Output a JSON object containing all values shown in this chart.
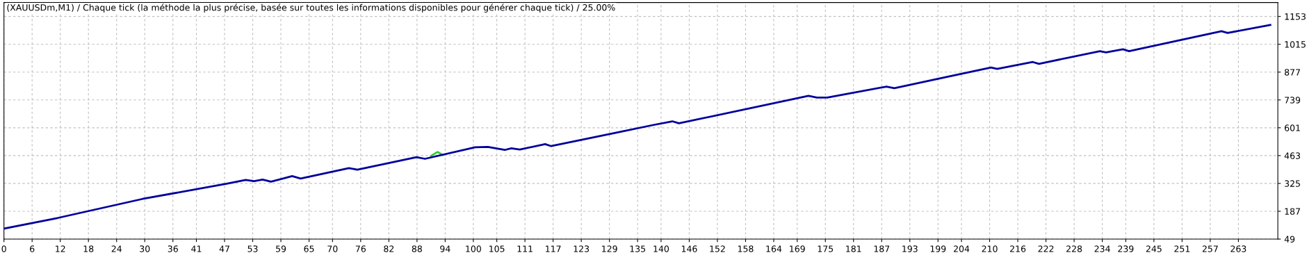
{
  "chart_data": {
    "type": "line",
    "title": "(XAUUSDm,M1) / Chaque tick (la méthode la plus précise, basée sur toutes les informations disponibles pour générer chaque tick) / 25.00%",
    "series": [
      {
        "color": "#00009c",
        "x": [
          0,
          11.5,
          29.5,
          47.4,
          51.5,
          53.3,
          55.1,
          56.9,
          61.4,
          63.2,
          73.5,
          75.3,
          87.9,
          89.7,
          100.4,
          103.1,
          106.7,
          108.1,
          109.9,
          115.3,
          116.6,
          130.1,
          138.4,
          142.4,
          143.8,
          171.4,
          173.2,
          175.4,
          188,
          189.7,
          200.9,
          210.3,
          211.6,
          219.2,
          220.5,
          233.5,
          234.8,
          238.4,
          239.7,
          259.4,
          260.7,
          269.8
        ],
        "values": [
          101,
          154,
          248,
          323,
          342,
          336,
          344,
          334,
          361,
          349,
          401,
          393,
          455,
          447,
          504,
          506,
          491,
          499,
          493,
          520,
          510,
          575,
          615,
          633,
          623,
          759,
          751,
          751,
          805,
          797,
          853,
          900,
          893,
          927,
          918,
          981,
          975,
          990,
          981,
          1080,
          1071,
          1111
        ]
      },
      {
        "color": "#2ecc2e",
        "x": [
          91.0,
          92.4,
          93.5
        ],
        "values": [
          462,
          481,
          466
        ]
      }
    ],
    "xlim": [
      0,
      271.4
    ],
    "xticks": [
      0,
      6,
      12,
      18,
      24,
      30,
      36,
      41,
      47,
      53,
      59,
      65,
      70,
      76,
      82,
      88,
      94,
      100,
      105,
      111,
      117,
      123,
      129,
      135,
      140,
      146,
      152,
      158,
      164,
      169,
      175,
      181,
      187,
      193,
      199,
      204,
      210,
      216,
      222,
      228,
      234,
      239,
      245,
      251,
      257,
      263
    ],
    "ylim": [
      49,
      1222
    ],
    "yticks": [
      49,
      187,
      325,
      463,
      601,
      739,
      877,
      1015,
      1153
    ],
    "grid": true,
    "marker": "none",
    "line_style": "solid"
  }
}
